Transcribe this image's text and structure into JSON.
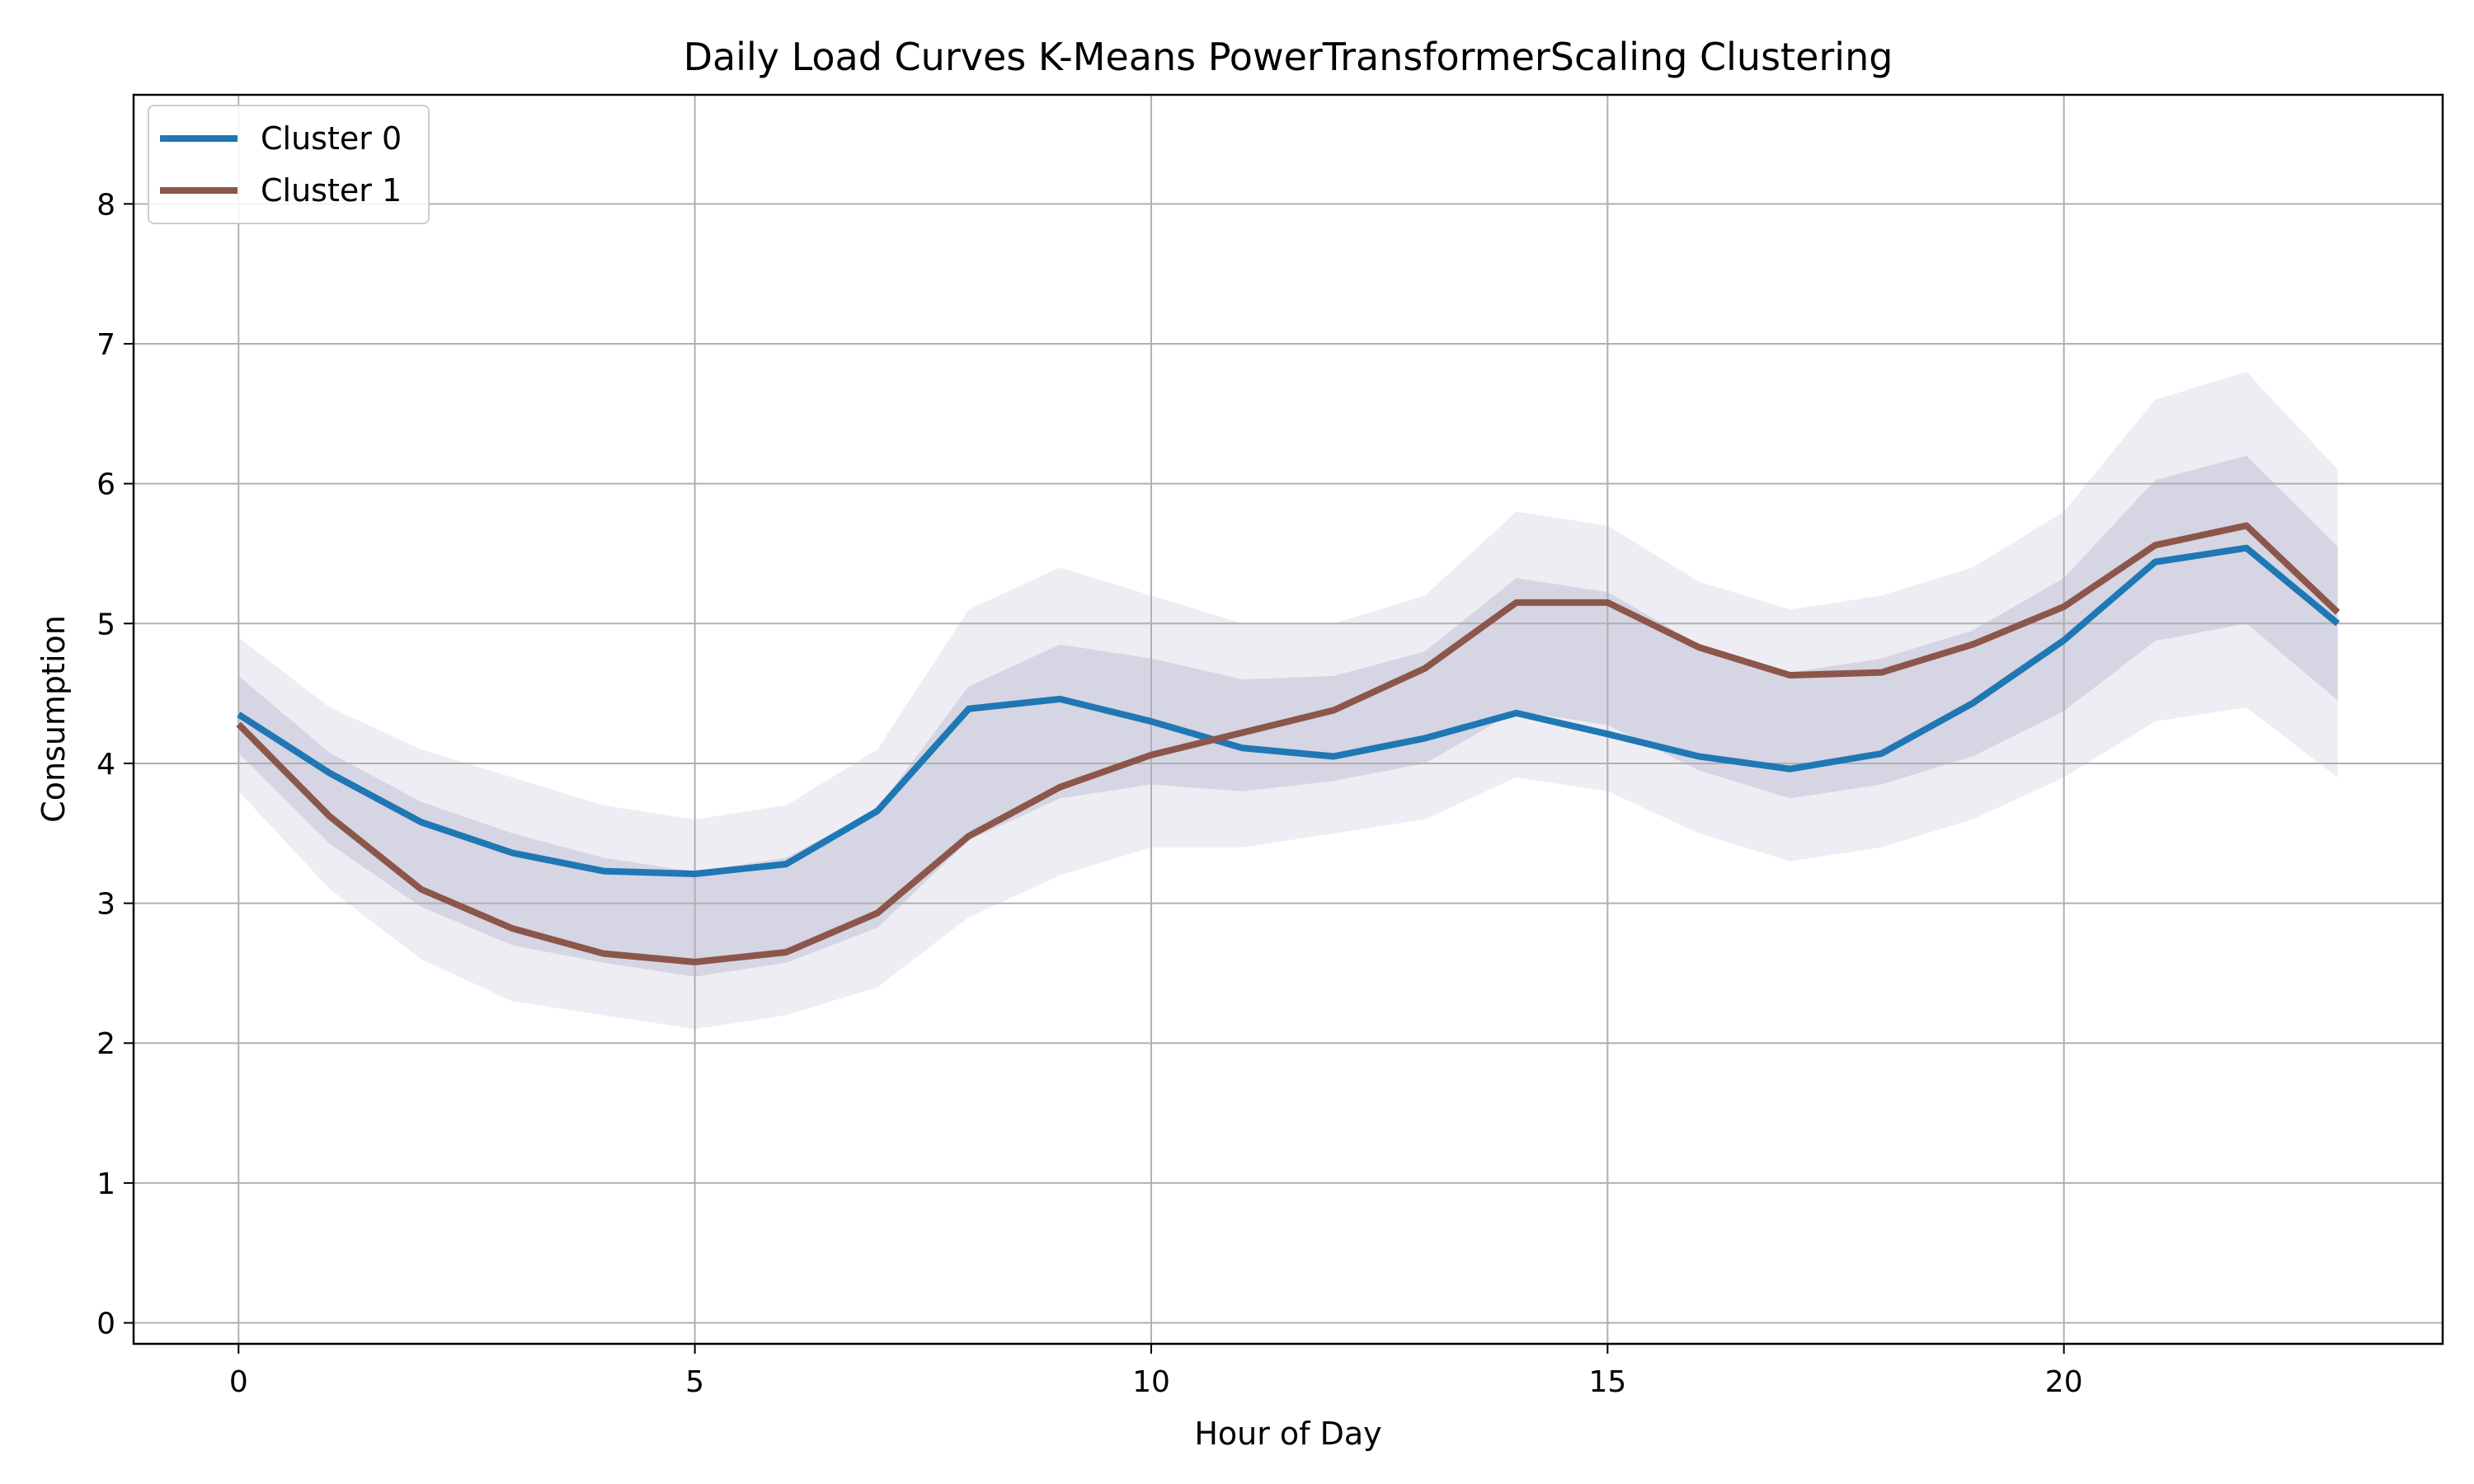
{
  "chart_data": {
    "type": "line",
    "title": "Daily Load Curves K-Means PowerTransformerScaling Clustering",
    "xlabel": "Hour of Day",
    "ylabel": "Consumption",
    "xlim": [
      -1.15,
      24.15
    ],
    "ylim": [
      -0.15,
      8.78
    ],
    "x": [
      0,
      1,
      2,
      3,
      4,
      5,
      6,
      7,
      8,
      9,
      10,
      11,
      12,
      13,
      14,
      15,
      16,
      17,
      18,
      19,
      20,
      21,
      22,
      23
    ],
    "xticks": [
      0,
      5,
      10,
      15,
      20
    ],
    "xtick_labels": [
      "0",
      "5",
      "10",
      "15",
      "20"
    ],
    "yticks": [
      0,
      1,
      2,
      3,
      4,
      5,
      6,
      7,
      8
    ],
    "ytick_labels": [
      "0",
      "1",
      "2",
      "3",
      "4",
      "5",
      "6",
      "7",
      "8"
    ],
    "grid": true,
    "legend_position": "top-left",
    "series": [
      {
        "name": "Cluster 0",
        "color": "#1f77b4",
        "values": [
          4.35,
          3.93,
          3.58,
          3.36,
          3.23,
          3.21,
          3.28,
          3.66,
          4.39,
          4.46,
          4.3,
          4.11,
          4.05,
          4.18,
          4.36,
          4.21,
          4.05,
          3.96,
          4.07,
          4.43,
          4.88,
          5.44,
          5.54,
          5.0
        ]
      },
      {
        "name": "Cluster 1",
        "color": "#8c564b",
        "values": [
          4.28,
          3.62,
          3.1,
          2.82,
          2.64,
          2.58,
          2.65,
          2.93,
          3.48,
          3.83,
          4.06,
          4.22,
          4.38,
          4.68,
          5.15,
          5.15,
          4.83,
          4.63,
          4.65,
          4.85,
          5.12,
          5.56,
          5.7,
          5.08
        ]
      }
    ],
    "background_band": {
      "color": "#4a4a8a",
      "note_values_low": [
        3.8,
        3.1,
        2.6,
        2.3,
        2.2,
        2.1,
        2.2,
        2.4,
        2.9,
        3.2,
        3.4,
        3.4,
        3.5,
        3.6,
        3.9,
        3.8,
        3.5,
        3.3,
        3.4,
        3.6,
        3.9,
        4.3,
        4.4,
        3.9
      ],
      "note_values_high": [
        4.9,
        4.4,
        4.1,
        3.9,
        3.7,
        3.6,
        3.7,
        4.1,
        5.1,
        5.4,
        5.2,
        5.0,
        5.0,
        5.2,
        5.8,
        5.7,
        5.3,
        5.1,
        5.2,
        5.4,
        5.8,
        6.6,
        6.8,
        6.1
      ]
    }
  }
}
